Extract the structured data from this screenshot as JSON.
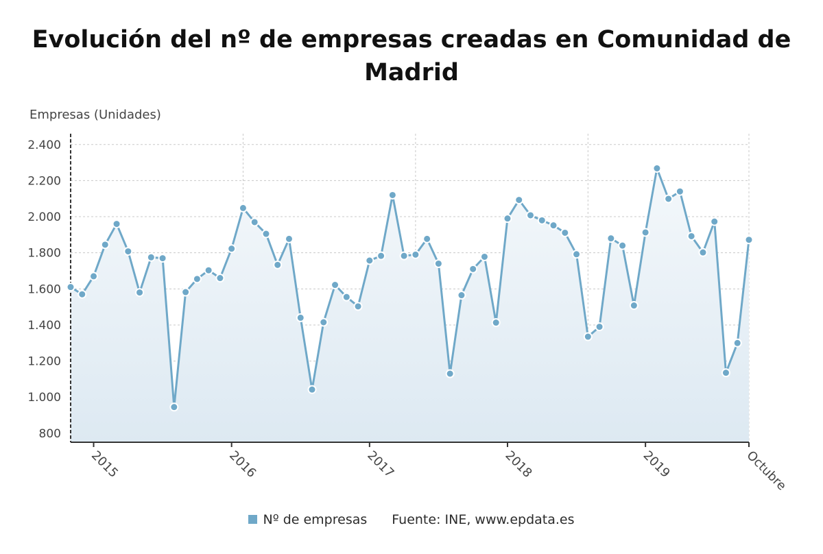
{
  "title": "Evolución del nº de empresas creadas en Comunidad de Madrid",
  "chart_data": {
    "type": "area",
    "title": "Evolución del nº de empresas creadas en Comunidad de Madrid",
    "ylabel": "Empresas (Unidades)",
    "xlabel": "",
    "ylim": [
      750,
      2460
    ],
    "yticks": [
      800,
      1000,
      1200,
      1400,
      1600,
      1800,
      2000,
      2200,
      2400
    ],
    "ytick_labels": [
      "800",
      "1.000",
      "1.200",
      "1.400",
      "1.600",
      "1.800",
      "2.000",
      "2.200",
      "2.400"
    ],
    "xticks": [
      {
        "label": "2015",
        "month": 1
      },
      {
        "label": "2016",
        "month": 13
      },
      {
        "label": "2017",
        "month": 25
      },
      {
        "label": "2018",
        "month": 37
      },
      {
        "label": "2019",
        "month": 49
      },
      {
        "label": "Octubre",
        "month": 58
      }
    ],
    "x_start": "2014-11",
    "x_end": "2019-10",
    "series": [
      {
        "name": "Nº de empresas",
        "color": "#6fa8c8",
        "x": [
          "2014-11",
          "2014-12",
          "2015-01",
          "2015-02",
          "2015-03",
          "2015-04",
          "2015-05",
          "2015-06",
          "2015-07",
          "2015-08",
          "2015-09",
          "2015-10",
          "2015-11",
          "2015-12",
          "2016-01",
          "2016-02",
          "2016-03",
          "2016-04",
          "2016-05",
          "2016-06",
          "2016-07",
          "2016-08",
          "2016-09",
          "2016-10",
          "2016-11",
          "2016-12",
          "2017-01",
          "2017-02",
          "2017-03",
          "2017-04",
          "2017-05",
          "2017-06",
          "2017-07",
          "2017-08",
          "2017-09",
          "2017-10",
          "2017-11",
          "2017-12",
          "2018-01",
          "2018-02",
          "2018-03",
          "2018-04",
          "2018-05",
          "2018-06",
          "2018-07",
          "2018-08",
          "2018-09",
          "2018-10",
          "2018-11",
          "2018-12",
          "2019-01",
          "2019-02",
          "2019-03",
          "2019-04",
          "2019-05",
          "2019-06",
          "2019-07",
          "2019-08",
          "2019-09",
          "2019-10"
        ],
        "values": [
          1610,
          1570,
          1670,
          1845,
          1960,
          1808,
          1580,
          1775,
          1770,
          945,
          1582,
          1655,
          1703,
          1660,
          1823,
          2048,
          1970,
          1905,
          1733,
          1877,
          1440,
          1042,
          1415,
          1622,
          1555,
          1503,
          1757,
          1783,
          2120,
          1783,
          1790,
          1877,
          1740,
          1130,
          1565,
          1710,
          1778,
          1413,
          1990,
          2093,
          2008,
          1980,
          1952,
          1911,
          1792,
          1335,
          1390,
          1880,
          1840,
          1508,
          1913,
          2268,
          2099,
          2140,
          1892,
          1802,
          1973,
          1135,
          1300,
          1872
        ]
      }
    ],
    "grid": true,
    "legend_position": "bottom",
    "legend": [
      "Nº de empresas"
    ],
    "source": "Fuente: INE, www.epdata.es"
  }
}
